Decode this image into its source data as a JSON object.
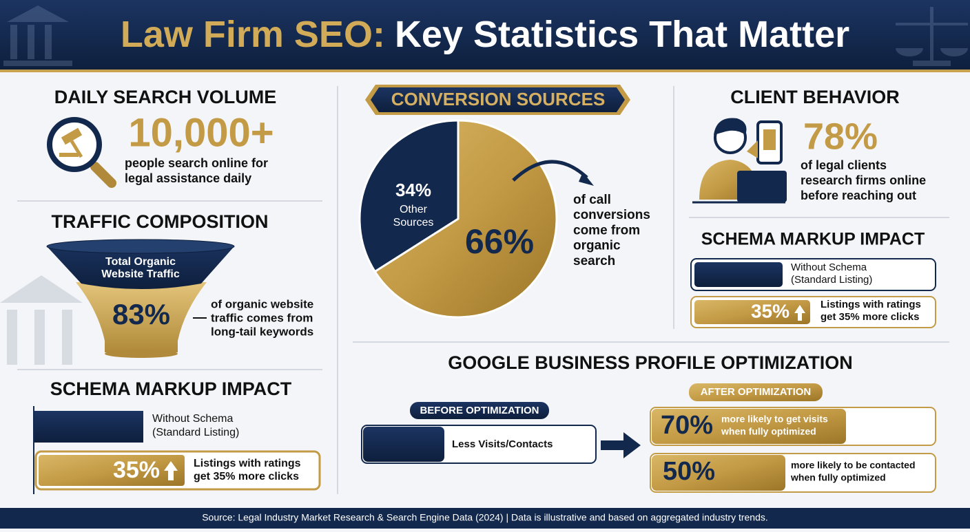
{
  "header": {
    "title_part1": "Law Firm SEO:",
    "title_part2": "Key Statistics That Matter"
  },
  "daily_search": {
    "title": "DAILY SEARCH VOLUME",
    "stat": "10,000+",
    "description": [
      "people search online for",
      "legal assistance daily"
    ]
  },
  "traffic": {
    "title": "TRAFFIC COMPOSITION",
    "funnel_top": [
      "Total Organic",
      "Website Traffic"
    ],
    "stat": "83%",
    "description": [
      "of organic website",
      "traffic comes from",
      "long-tail keywords"
    ]
  },
  "schema_left": {
    "title": "SCHEMA MARKUP IMPACT",
    "without": [
      "Without Schema",
      "(Standard Listing)"
    ],
    "stat": "35%",
    "with": [
      "Listings with ratings",
      "get 35% more clicks"
    ]
  },
  "conversion": {
    "title": "CONVERSION SOURCES",
    "chart": {
      "type": "pie",
      "values": [
        34,
        66
      ],
      "value_labels": [
        "34%",
        "66%"
      ],
      "categories": [
        "Other Sources",
        null
      ],
      "colors": [
        "#13284d",
        "#c9a24e"
      ]
    },
    "caption": [
      "of call",
      "conversions",
      "come from",
      "organic",
      "search"
    ]
  },
  "client": {
    "title": "CLIENT BEHAVIOR",
    "stat": "78%",
    "description": [
      "of legal clients",
      "research firms online",
      "before reaching out"
    ]
  },
  "schema_right": {
    "title": "SCHEMA MARKUP IMPACT",
    "without": [
      "Without Schema",
      "(Standard Listing)"
    ],
    "stat": "35%",
    "with": [
      "Listings with ratings",
      "get 35% more clicks"
    ]
  },
  "gbp": {
    "title": "GOOGLE BUSINESS PROFILE OPTIMIZATION",
    "before": {
      "label": "BEFORE OPTIMIZATION",
      "text": "Less Visits/Contacts"
    },
    "after": {
      "label": "AFTER OPTIMIZATION",
      "items": [
        {
          "stat": "70%",
          "text": [
            "more likely to get visits",
            "when fully optimized"
          ]
        },
        {
          "stat": "50%",
          "text": [
            "more likely to be contacted",
            "when fully optimized"
          ]
        }
      ]
    }
  },
  "footer": {
    "source": "Source: Legal Industry Market Research & Search Engine Data (2024) | Data is illustrative and based on aggregated industry trends."
  }
}
